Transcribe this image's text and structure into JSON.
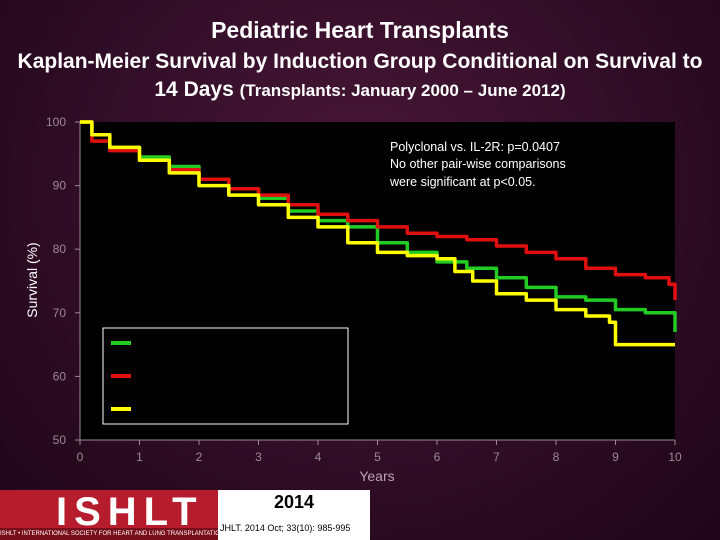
{
  "title": "Pediatric Heart Transplants",
  "subtitle_main": "Kaplan-Meier Survival by Induction Group Conditional on Survival to 14 Days",
  "subtitle_paren": "(Transplants: January 2000 – June 2012)",
  "annotation_lines": [
    "Polyclonal vs. IL-2R: p=0.0407",
    "No other pair-wise comparisons",
    "were significant at p<0.05."
  ],
  "footer": {
    "logo_text": "ISHLT",
    "logo_tagline": "ISHLT • INTERNATIONAL SOCIETY FOR HEART AND LUNG TRANSPLANTATION",
    "year": "2014",
    "citation": "JHLT. 2014 Oct; 33(10): 985-995"
  },
  "colors": {
    "background": "#2e0c24",
    "green": "#22cc22",
    "red": "#e01010",
    "yellow": "#ffff00"
  },
  "chart_data": {
    "type": "line",
    "xlabel": "Years",
    "ylabel": "Survival (%)",
    "xlim": [
      0,
      10
    ],
    "ylim": [
      50,
      100
    ],
    "xticks": [
      "0",
      "1",
      "2",
      "3",
      "4",
      "5",
      "6",
      "7",
      "8",
      "9",
      "10"
    ],
    "yticks": [
      "50",
      "60",
      "70",
      "80",
      "90",
      "100"
    ],
    "grid": false,
    "legend_position": "lower-left",
    "series": [
      {
        "color": "#22cc22",
        "x": [
          0,
          0.2,
          0.5,
          1,
          1.5,
          2,
          2.5,
          3,
          3.5,
          4,
          4.5,
          5,
          5.5,
          6,
          6.5,
          7,
          7.5,
          8,
          8.5,
          9,
          9.5,
          10
        ],
        "y": [
          100,
          98,
          96,
          94.5,
          93,
          91,
          89.5,
          88,
          86,
          84.5,
          83.5,
          81,
          79.5,
          78,
          77,
          75.5,
          74,
          72.5,
          72,
          70.5,
          70,
          67
        ]
      },
      {
        "color": "#e01010",
        "x": [
          0,
          0.2,
          0.5,
          1,
          1.5,
          2,
          2.5,
          3,
          3.5,
          4,
          4.5,
          5,
          5.5,
          6,
          6.5,
          7,
          7.5,
          8,
          8.5,
          9,
          9.5,
          9.9,
          10
        ],
        "y": [
          100,
          97,
          95.5,
          94,
          92.5,
          91,
          89.5,
          88.5,
          87,
          85.5,
          84.5,
          83.5,
          82.5,
          82,
          81.5,
          80.5,
          79.5,
          78.5,
          77,
          76,
          75.5,
          74.5,
          72
        ]
      },
      {
        "color": "#ffff00",
        "x": [
          0,
          0.2,
          0.5,
          1,
          1.5,
          2,
          2.5,
          3,
          3.5,
          4,
          4.5,
          5,
          5.5,
          6,
          6.3,
          6.6,
          7,
          7.5,
          8,
          8.5,
          8.9,
          9,
          9.5,
          10
        ],
        "y": [
          100,
          98,
          96,
          94,
          92,
          90,
          88.5,
          87,
          85,
          83.5,
          81,
          79.5,
          79,
          78.5,
          76.5,
          75,
          73,
          72,
          70.5,
          69.5,
          68.5,
          65,
          65,
          65
        ]
      }
    ]
  }
}
